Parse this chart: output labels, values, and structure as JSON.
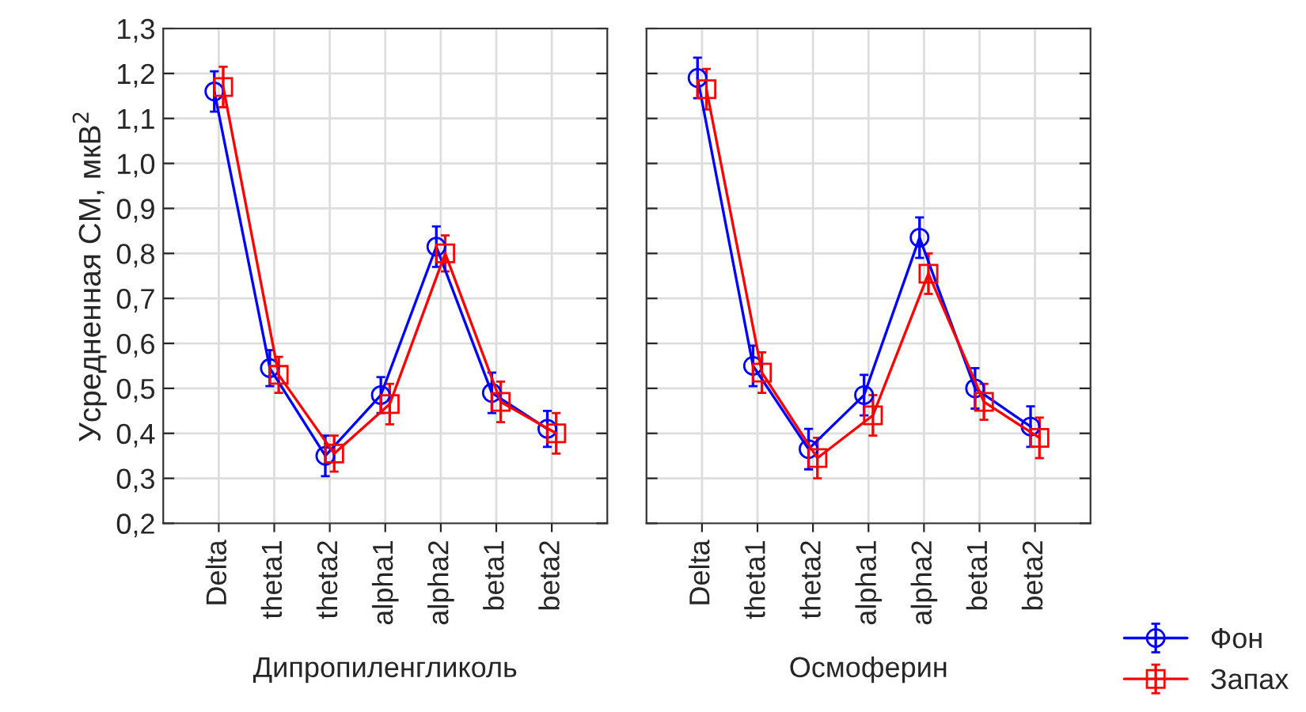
{
  "chart_data": [
    {
      "type": "line",
      "xlabel": "Дипропиленгликоль",
      "ylabel": "Усредненная СМ, мкВ$^{2}$",
      "categories": [
        "Delta",
        "theta1",
        "theta2",
        "alpha1",
        "alpha2",
        "beta1",
        "beta2"
      ],
      "series": [
        {
          "name": "Фон",
          "color": "#0000ff",
          "marker": "circle",
          "values": [
            1.16,
            0.545,
            0.35,
            0.485,
            0.815,
            0.49,
            0.41
          ],
          "errors": [
            0.045,
            0.04,
            0.045,
            0.04,
            0.045,
            0.045,
            0.04
          ]
        },
        {
          "name": "Запах",
          "color": "#ff0000",
          "marker": "square",
          "values": [
            1.17,
            0.53,
            0.355,
            0.465,
            0.8,
            0.47,
            0.4
          ],
          "errors": [
            0.045,
            0.04,
            0.04,
            0.045,
            0.04,
            0.045,
            0.045
          ]
        }
      ],
      "ylim": [
        0.2,
        1.3
      ],
      "yticks": [
        {
          "value": 0.2,
          "label": "0,2"
        },
        {
          "value": 0.3,
          "label": "0,3"
        },
        {
          "value": 0.4,
          "label": "0,4"
        },
        {
          "value": 0.5,
          "label": "0,5"
        },
        {
          "value": 0.6,
          "label": "0,6"
        },
        {
          "value": 0.7,
          "label": "0,7"
        },
        {
          "value": 0.8,
          "label": "0,8"
        },
        {
          "value": 0.9,
          "label": "0,9"
        },
        {
          "value": 1.0,
          "label": "1,0"
        },
        {
          "value": 1.1,
          "label": "1,1"
        },
        {
          "value": 1.2,
          "label": "1,2"
        },
        {
          "value": 1.3,
          "label": "1,3"
        }
      ],
      "grid": true,
      "legend": "bottom right"
    },
    {
      "type": "line",
      "xlabel": "Осмоферин",
      "categories": [
        "Delta",
        "theta1",
        "theta2",
        "alpha1",
        "alpha2",
        "beta1",
        "beta2"
      ],
      "series": [
        {
          "color": "#0000ff",
          "marker": "circle",
          "values": [
            1.19,
            0.55,
            0.365,
            0.485,
            0.835,
            0.5,
            0.415
          ],
          "errors": [
            0.045,
            0.045,
            0.045,
            0.045,
            0.045,
            0.045,
            0.045
          ]
        },
        {
          "color": "#ff0000",
          "marker": "square",
          "values": [
            1.165,
            0.535,
            0.345,
            0.44,
            0.755,
            0.47,
            0.39
          ],
          "errors": [
            0.045,
            0.045,
            0.045,
            0.045,
            0.045,
            0.04,
            0.045
          ]
        }
      ],
      "ylim": [
        0.2,
        1.3
      ],
      "tick_labels": "x",
      "grid": true,
      "yticks": [
        {
          "value": 0.2,
          "label": null
        },
        {
          "value": 0.3,
          "label": null
        },
        {
          "value": 0.4,
          "label": null
        },
        {
          "value": 0.5,
          "label": null
        },
        {
          "value": 0.6,
          "label": null
        },
        {
          "value": 0.7,
          "label": null
        },
        {
          "value": 0.8,
          "label": null
        },
        {
          "value": 0.9,
          "label": null
        },
        {
          "value": 1.0,
          "label": null
        },
        {
          "value": 1.1,
          "label": null
        },
        {
          "value": 1.2,
          "label": null
        },
        {
          "value": 1.3,
          "label": null
        }
      ]
    }
  ]
}
